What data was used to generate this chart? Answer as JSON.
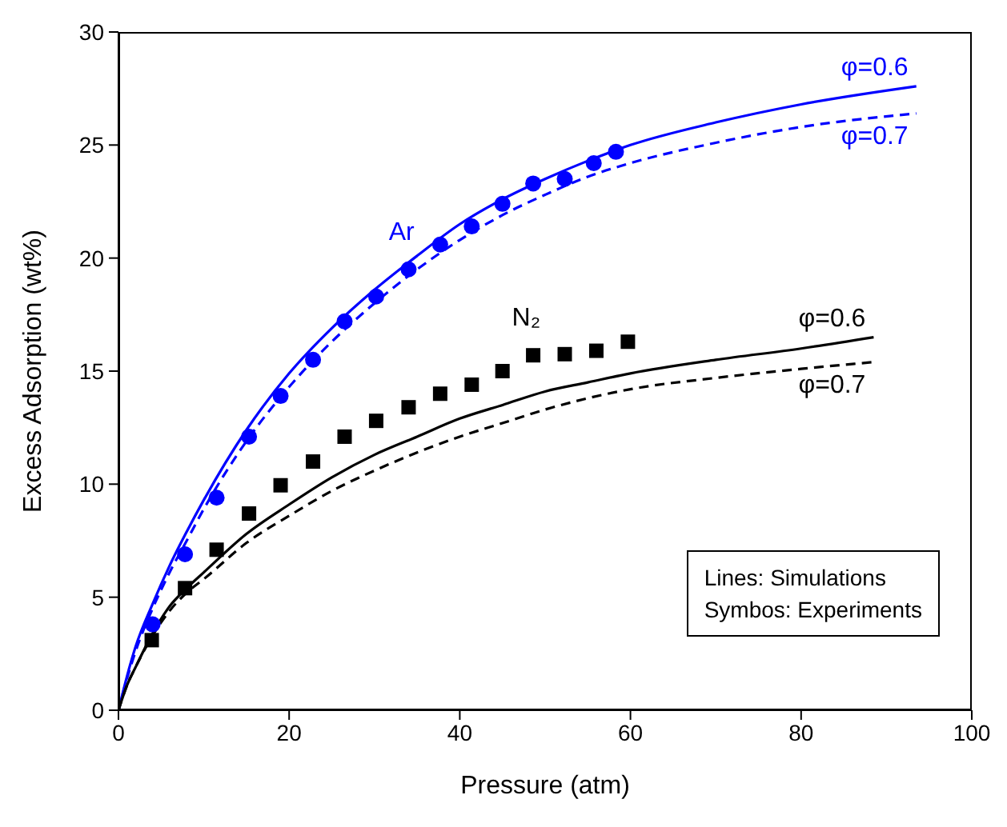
{
  "chart_data": {
    "type": "line",
    "xlabel": "Pressure (atm)",
    "ylabel": "Excess Adsorption (wt%)",
    "xlim": [
      0,
      100
    ],
    "xticks": [
      0,
      20,
      40,
      60,
      80,
      100
    ],
    "ylim": [
      0,
      30
    ],
    "yticks": [
      0,
      5,
      10,
      15,
      20,
      25,
      30
    ],
    "grid": false,
    "legend": false,
    "series": [
      {
        "name": "φ=0.6",
        "color": "#0000ff",
        "line_style": "solid",
        "marker": "none",
        "x": [
          0,
          1,
          2,
          4,
          6,
          8,
          10,
          15,
          20,
          25,
          30,
          35,
          40,
          45,
          50,
          55,
          60,
          70,
          80,
          93.5
        ],
        "values": [
          0,
          1.5,
          2.8,
          4.7,
          6.4,
          7.9,
          9.3,
          12.4,
          14.9,
          16.9,
          18.6,
          20.1,
          21.5,
          22.6,
          23.5,
          24.3,
          25.0,
          26.0,
          26.8,
          27.6
        ]
      },
      {
        "name": "φ=0.7",
        "color": "#0000ff",
        "line_style": "dashed",
        "marker": "none",
        "x": [
          0,
          1,
          2,
          4,
          6,
          8,
          10,
          15,
          20,
          25,
          30,
          35,
          40,
          45,
          50,
          55,
          60,
          70,
          80,
          93.5
        ],
        "values": [
          0,
          1.4,
          2.6,
          4.5,
          6.1,
          7.5,
          8.9,
          11.9,
          14.3,
          16.3,
          18.0,
          19.5,
          20.8,
          21.9,
          22.8,
          23.6,
          24.2,
          25.1,
          25.8,
          26.4
        ]
      },
      {
        "name": "φ=0.6",
        "color": "#000000",
        "line_style": "solid",
        "marker": "none",
        "x": [
          0,
          1,
          2,
          4,
          6,
          8,
          10,
          15,
          20,
          25,
          30,
          35,
          40,
          45,
          50,
          55,
          60,
          70,
          80,
          88.5
        ],
        "values": [
          0,
          1.1,
          1.9,
          3.4,
          4.6,
          5.4,
          6.1,
          7.8,
          9.1,
          10.3,
          11.3,
          12.1,
          12.9,
          13.5,
          14.1,
          14.5,
          14.9,
          15.5,
          16.0,
          16.5
        ]
      },
      {
        "name": "φ=0.7",
        "color": "#000000",
        "line_style": "dashed",
        "marker": "none",
        "x": [
          0,
          1,
          2,
          4,
          6,
          8,
          10,
          15,
          20,
          25,
          30,
          35,
          40,
          45,
          50,
          55,
          60,
          70,
          80,
          88.5
        ],
        "values": [
          0,
          1.1,
          1.9,
          3.3,
          4.4,
          5.2,
          5.8,
          7.4,
          8.6,
          9.7,
          10.6,
          11.4,
          12.1,
          12.7,
          13.3,
          13.8,
          14.2,
          14.7,
          15.1,
          15.4
        ]
      },
      {
        "name": "Ar",
        "type": "scatter",
        "color": "#0000ff",
        "marker": "circle",
        "x": [
          4,
          7.8,
          11.5,
          15.3,
          19,
          22.8,
          26.5,
          30.2,
          34,
          37.7,
          41.4,
          45,
          48.6,
          52.3,
          55.7,
          58.3
        ],
        "values": [
          3.8,
          6.9,
          9.4,
          12.1,
          13.9,
          15.5,
          17.2,
          18.3,
          19.5,
          20.6,
          21.4,
          22.4,
          23.3,
          23.5,
          24.2,
          24.7
        ]
      },
      {
        "name": "N₂",
        "type": "scatter",
        "color": "#000000",
        "marker": "square",
        "x": [
          3.9,
          7.8,
          11.5,
          15.3,
          19,
          22.8,
          26.5,
          30.2,
          34,
          37.7,
          41.4,
          45,
          48.6,
          52.3,
          56,
          59.7
        ],
        "values": [
          3.1,
          5.4,
          7.1,
          8.7,
          9.95,
          11.0,
          12.1,
          12.8,
          13.4,
          14.0,
          14.4,
          15.0,
          15.7,
          15.75,
          15.9,
          16.3
        ]
      }
    ],
    "annotations": [
      "Lines: Simulations",
      "Symbos: Experiments"
    ]
  }
}
